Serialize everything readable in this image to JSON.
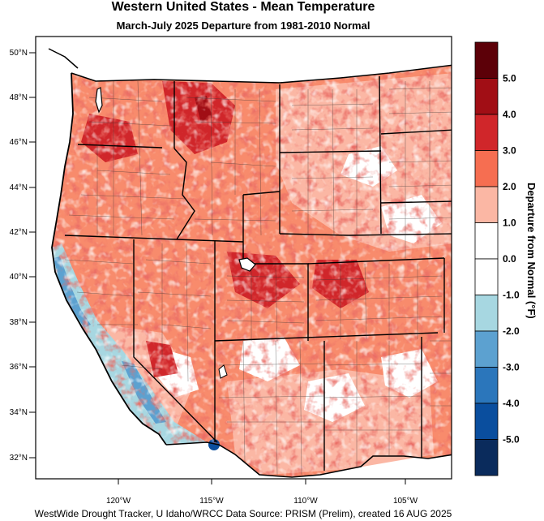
{
  "title": "Western United States - Mean Temperature",
  "subtitle": "March-July 2025  Departure from 1981-2010 Normal",
  "credit": "WestWide Drought Tracker, U Idaho/WRCC Data Source: PRISM (Prelim), created 16 AUG 2025",
  "colorbar": {
    "title": "Departure from Normal (°F)",
    "tick_labels": [
      "5.0",
      "4.0",
      "3.0",
      "2.0",
      "1.0",
      "0.0",
      "-1.0",
      "-2.0",
      "-3.0",
      "-4.0",
      "-5.0"
    ],
    "colors": [
      "#5c0008",
      "#a10e15",
      "#d0262a",
      "#f66e51",
      "#fbb7a4",
      "#ffffff",
      "#ffffff",
      "#a7d7e1",
      "#5ca1d0",
      "#2b76bb",
      "#0a4e9e",
      "#0a2b5c"
    ]
  },
  "axes": {
    "lat_labels": [
      "50°N",
      "48°N",
      "46°N",
      "44°N",
      "42°N",
      "40°N",
      "38°N",
      "36°N",
      "34°N",
      "32°N"
    ],
    "lon_labels": [
      "120°W",
      "115°W",
      "110°W",
      "105°W"
    ]
  }
}
